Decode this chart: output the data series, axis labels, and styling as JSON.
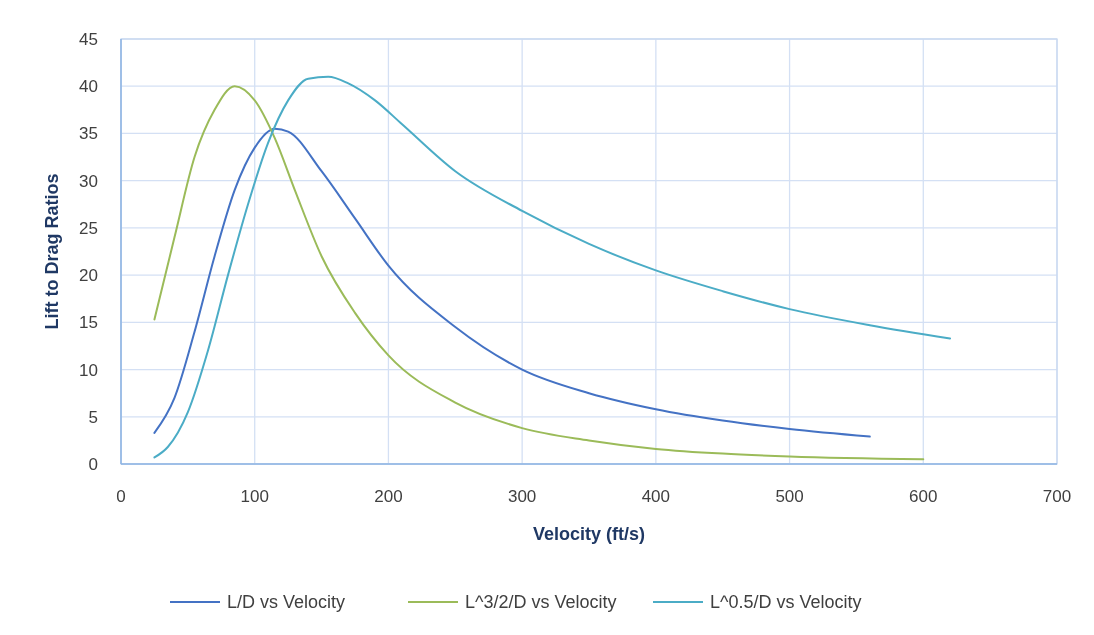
{
  "chart_data": {
    "type": "line",
    "xlabel": "Velocity (ft/s)",
    "ylabel": "Lift to Drag Ratios",
    "xlim": [
      0,
      700
    ],
    "xticks": [
      0,
      100,
      200,
      300,
      400,
      500,
      600,
      700
    ],
    "ylim": [
      0,
      45
    ],
    "yticks": [
      0,
      5,
      10,
      15,
      20,
      25,
      30,
      35,
      40,
      45
    ],
    "grid": true,
    "legend": "bottom",
    "marker": "none",
    "line_style": "solid",
    "series": [
      {
        "name": "L/D vs Velocity",
        "color": "#4472c4",
        "x": [
          25,
          40,
          55,
          70,
          85,
          100,
          115,
          125,
          150,
          175,
          200,
          250,
          300,
          350,
          400,
          450,
          500,
          560
        ],
        "values": [
          3.3,
          7,
          14,
          22,
          29,
          33.5,
          35.5,
          35.2,
          31,
          26,
          21,
          14.5,
          10,
          7.5,
          5.8,
          4.6,
          3.7,
          2.9
        ]
      },
      {
        "name": "L^3/2/D vs Velocity",
        "color": "#9bbb59",
        "x": [
          25,
          40,
          55,
          70,
          85,
          100,
          115,
          130,
          150,
          175,
          200,
          250,
          300,
          350,
          400,
          450,
          500,
          600
        ],
        "values": [
          15.3,
          24,
          32.5,
          37.5,
          40,
          38.5,
          34.5,
          29,
          22,
          16,
          11.5,
          6.5,
          3.8,
          2.5,
          1.6,
          1.1,
          0.8,
          0.5
        ]
      },
      {
        "name": "L^0.5/D vs Velocity",
        "color": "#4bacc6",
        "x": [
          25,
          35,
          50,
          65,
          80,
          95,
          110,
          125,
          140,
          155,
          170,
          190,
          210,
          250,
          300,
          350,
          400,
          450,
          500,
          560,
          620
        ],
        "values": [
          0.7,
          1.8,
          5.5,
          12,
          20,
          27.5,
          34,
          38.5,
          40.8,
          41,
          40.3,
          38.5,
          36,
          31,
          26.8,
          23.3,
          20.5,
          18.3,
          16.4,
          14.7,
          13.3
        ]
      }
    ]
  }
}
